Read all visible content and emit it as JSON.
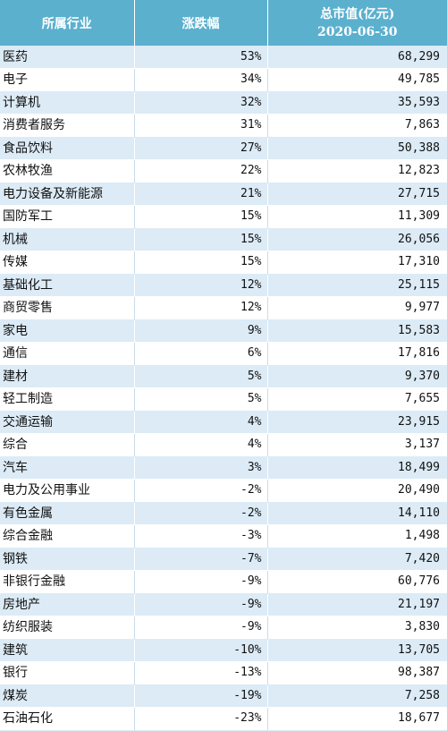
{
  "table": {
    "headers": {
      "industry": "所属行业",
      "change": "涨跌幅",
      "cap_line1": "总市值(亿元)",
      "cap_line2": "2020-06-30"
    },
    "rows": [
      {
        "industry": "医药",
        "change": "53%",
        "cap": "68,299"
      },
      {
        "industry": "电子",
        "change": "34%",
        "cap": "49,785"
      },
      {
        "industry": "计算机",
        "change": "32%",
        "cap": "35,593"
      },
      {
        "industry": "消费者服务",
        "change": "31%",
        "cap": "7,863"
      },
      {
        "industry": "食品饮料",
        "change": "27%",
        "cap": "50,388"
      },
      {
        "industry": "农林牧渔",
        "change": "22%",
        "cap": "12,823"
      },
      {
        "industry": "电力设备及新能源",
        "change": "21%",
        "cap": "27,715"
      },
      {
        "industry": "国防军工",
        "change": "15%",
        "cap": "11,309"
      },
      {
        "industry": "机械",
        "change": "15%",
        "cap": "26,056"
      },
      {
        "industry": "传媒",
        "change": "15%",
        "cap": "17,310"
      },
      {
        "industry": "基础化工",
        "change": "12%",
        "cap": "25,115"
      },
      {
        "industry": "商贸零售",
        "change": "12%",
        "cap": "9,977"
      },
      {
        "industry": "家电",
        "change": "9%",
        "cap": "15,583"
      },
      {
        "industry": "通信",
        "change": "6%",
        "cap": "17,816"
      },
      {
        "industry": "建材",
        "change": "5%",
        "cap": "9,370"
      },
      {
        "industry": "轻工制造",
        "change": "5%",
        "cap": "7,655"
      },
      {
        "industry": "交通运输",
        "change": "4%",
        "cap": "23,915"
      },
      {
        "industry": "综合",
        "change": "4%",
        "cap": "3,137"
      },
      {
        "industry": "汽车",
        "change": "3%",
        "cap": "18,499"
      },
      {
        "industry": "电力及公用事业",
        "change": "-2%",
        "cap": "20,490"
      },
      {
        "industry": "有色金属",
        "change": "-2%",
        "cap": "14,110"
      },
      {
        "industry": "综合金融",
        "change": "-3%",
        "cap": "1,498"
      },
      {
        "industry": "钢铁",
        "change": "-7%",
        "cap": "7,420"
      },
      {
        "industry": "非银行金融",
        "change": "-9%",
        "cap": "60,776"
      },
      {
        "industry": "房地产",
        "change": "-9%",
        "cap": "21,197"
      },
      {
        "industry": "纺织服装",
        "change": "-9%",
        "cap": "3,830"
      },
      {
        "industry": "建筑",
        "change": "-10%",
        "cap": "13,705"
      },
      {
        "industry": "银行",
        "change": "-13%",
        "cap": "98,387"
      },
      {
        "industry": "煤炭",
        "change": "-19%",
        "cap": "7,258"
      },
      {
        "industry": "石油石化",
        "change": "-23%",
        "cap": "18,677"
      }
    ]
  },
  "colors": {
    "header_bg": "#5bb0ce",
    "band_bg": "#dcebf6"
  }
}
